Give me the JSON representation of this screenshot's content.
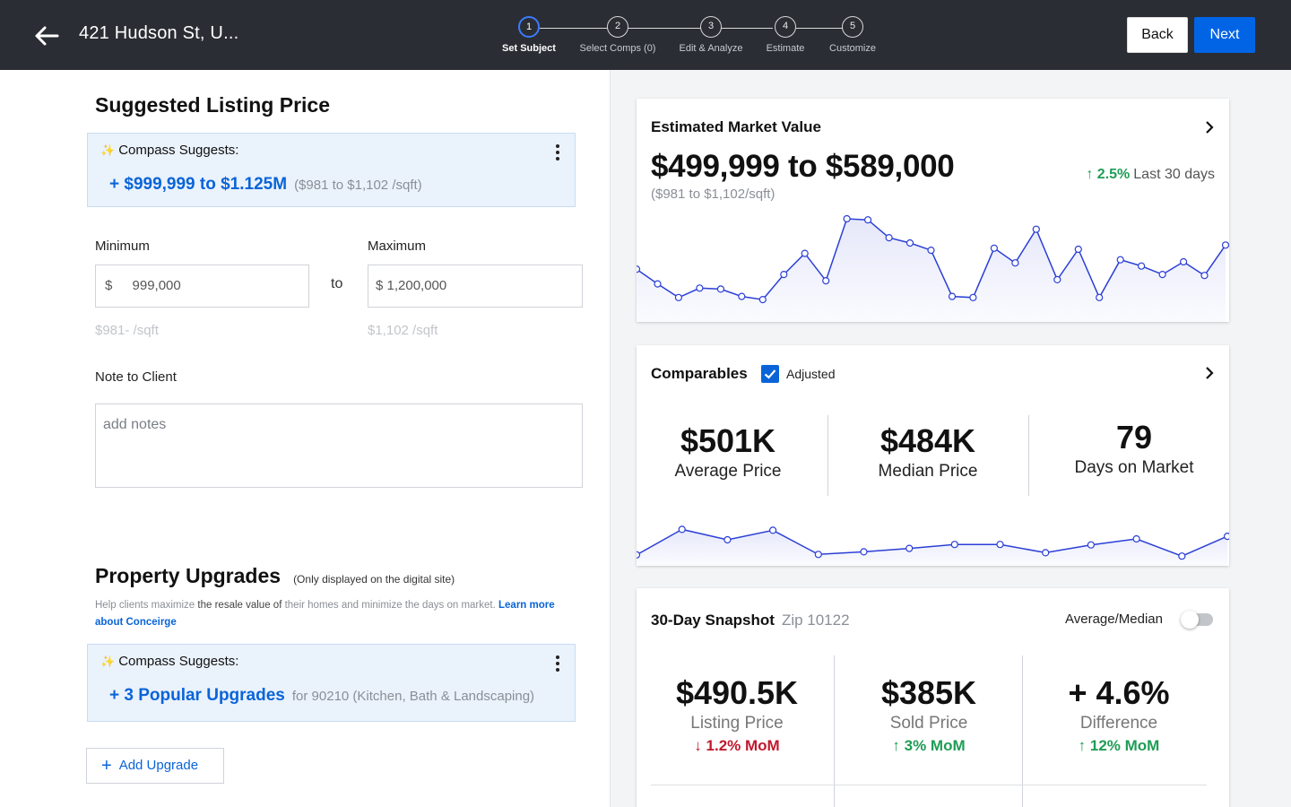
{
  "header": {
    "address": "421 Hudson St,  U...",
    "steps": [
      {
        "num": "1",
        "label": "Set Subject"
      },
      {
        "num": "2",
        "label": "Select Comps (0)"
      },
      {
        "num": "3",
        "label": "Edit & Analyze"
      },
      {
        "num": "4",
        "label": "Estimate"
      },
      {
        "num": "5",
        "label": "Customize"
      }
    ],
    "active_step": 1,
    "back_label": "Back",
    "next_label": "Next"
  },
  "listing": {
    "title": "Suggested Listing Price",
    "suggest_head": "Compass Suggests:",
    "suggest_range": "+ $999,999 to $1.125M",
    "suggest_sqft": "($981 to $1,102 /sqft)",
    "min_label": "Minimum",
    "max_label": "Maximum",
    "currency": "$",
    "min_value": "999,000",
    "max_value": "$ 1,200,000",
    "to": "to",
    "min_sqft": "$981- /sqft",
    "max_sqft": "$1,102 /sqft",
    "note_label": "Note to Client",
    "note_placeholder": "add notes"
  },
  "upgrades": {
    "title": "Property Upgrades",
    "note": "(Only displayed on the digital site)",
    "help_1": "Help clients maximize ",
    "help_2": "the resale value of",
    "help_3": " their homes and minimize the days on market. ",
    "help_link": "Learn more about Conceirge",
    "suggest_head": "Compass Suggests:",
    "suggest_main": "+ 3 Popular Upgrades",
    "suggest_sub": "for 90210 (Kitchen, Bath & Landscaping)",
    "add_label": "Add Upgrade"
  },
  "market_value": {
    "title": "Estimated Market Value",
    "value": "$499,999 to $589,000",
    "sqft": "($981 to $1,102/sqft)",
    "change": "2.5%",
    "change_period": "Last 30 days"
  },
  "comparables": {
    "title": "Comparables",
    "adjusted_label": "Adjusted",
    "adjusted": true,
    "stats": [
      {
        "value": "$501K",
        "label": "Average Price"
      },
      {
        "value": "$484K",
        "label": "Median Price"
      },
      {
        "value": "79",
        "label": "Days on Market"
      }
    ]
  },
  "snapshot": {
    "title": "30-Day Snapshot",
    "zip": "Zip 10122",
    "toggle_label": "Average/Median",
    "stats": [
      {
        "value": "$490.5K",
        "label": "Listing Price",
        "mom": "1.2% MoM",
        "dir": "down"
      },
      {
        "value": "$385K",
        "label": "Sold Price",
        "mom": "3% MoM",
        "dir": "up"
      },
      {
        "value": "+ 4.6%",
        "label": "Difference",
        "mom": "12% MoM",
        "dir": "up"
      }
    ]
  },
  "icons": {
    "back": "arrow-left-icon",
    "kebab": "more-vertical-icon",
    "chevron": "chevron-right-icon",
    "check": "checkbox-checked-icon",
    "sparkle": "sparkle-icon",
    "plus": "plus-icon",
    "arrow_up": "arrow-up-icon",
    "arrow_down": "arrow-down-icon"
  },
  "colors": {
    "topbar": "#2a2d33",
    "accent": "#0064e5",
    "link": "#0a64d8",
    "positive": "#1f9d55",
    "negative": "#c0192e",
    "chart_line": "#2b3fd6"
  },
  "chart_data": [
    {
      "type": "line",
      "name": "market-value-trend",
      "values": [
        40,
        26,
        13,
        22,
        21,
        14,
        11,
        35,
        55,
        29,
        88,
        87,
        70,
        65,
        58,
        14,
        13,
        60,
        46,
        78,
        30,
        59,
        13,
        49,
        43,
        35,
        47,
        34,
        63
      ],
      "ylim": [
        0,
        100
      ],
      "grid": false
    },
    {
      "type": "line",
      "name": "comparables-trend",
      "values": [
        13,
        72,
        48,
        70,
        14,
        20,
        28,
        37,
        37,
        18,
        36,
        50,
        10,
        56
      ],
      "ylim": [
        0,
        100
      ],
      "grid": false
    }
  ]
}
